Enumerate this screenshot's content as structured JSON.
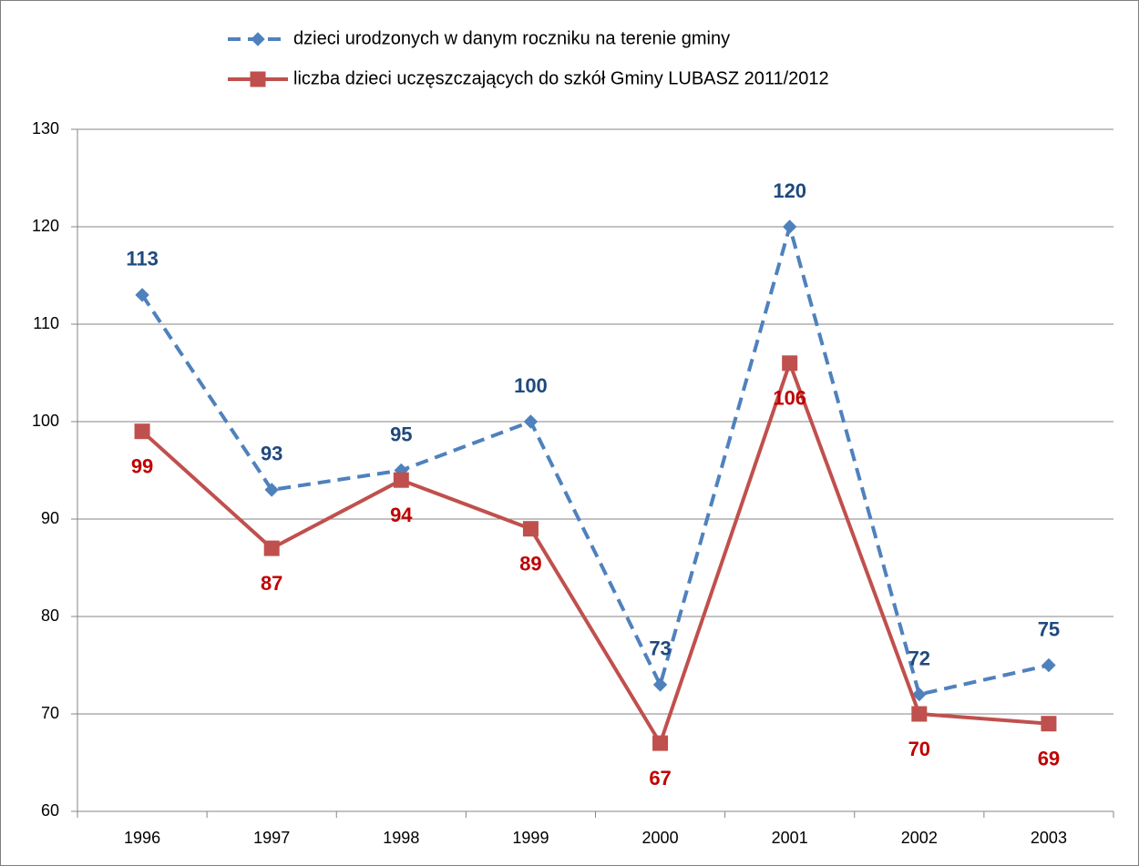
{
  "chart_data": {
    "type": "line",
    "categories": [
      "1996",
      "1997",
      "1998",
      "1999",
      "2000",
      "2001",
      "2002",
      "2003"
    ],
    "series": [
      {
        "name": "dzieci urodzonych w danym roczniku na terenie gminy",
        "color": "#4f81bd",
        "label_color": "#1f497d",
        "dashed": true,
        "marker": "diamond",
        "label_position": "above",
        "values": [
          113,
          93,
          95,
          100,
          73,
          120,
          72,
          75
        ]
      },
      {
        "name": "liczba dzieci uczęszczających do szkół Gminy LUBASZ 2011/2012",
        "color": "#c0504d",
        "label_color": "#c00000",
        "dashed": false,
        "marker": "square",
        "label_position": "below",
        "values": [
          99,
          87,
          94,
          89,
          67,
          106,
          70,
          69
        ]
      }
    ],
    "ylim": [
      60,
      130
    ],
    "yticks": [
      60,
      70,
      80,
      90,
      100,
      110,
      120,
      130
    ],
    "grid": true,
    "legend": "top"
  }
}
